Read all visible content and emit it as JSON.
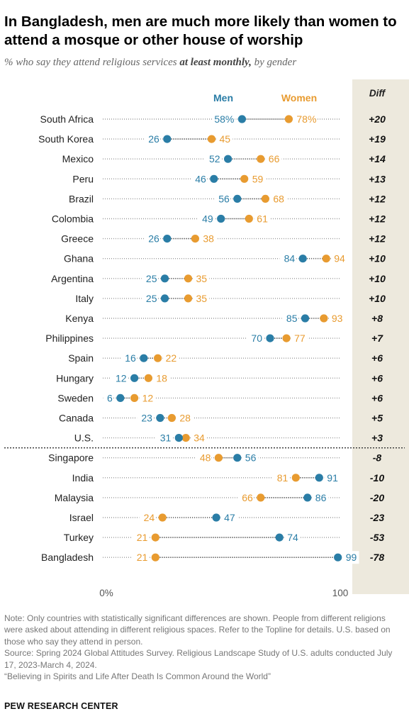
{
  "header": {
    "title": "In Bangladesh, men are much more likely than women to attend a mosque or other house of worship",
    "subtitle_pre": "% who say they attend religious services ",
    "subtitle_bold": "at least monthly,",
    "subtitle_post": " by gender"
  },
  "colors": {
    "men": "#2a7da6",
    "women": "#e89b30",
    "diff_bg": "#ede9dd",
    "dots": "#9a9a9a"
  },
  "chart_data": {
    "type": "scatter",
    "subtype": "dot-plot",
    "xlim": [
      0,
      100
    ],
    "x_tick_labels": [
      "0%",
      "100"
    ],
    "legend": [
      "Men",
      "Women"
    ],
    "diff_header": "Diff",
    "categories": [
      "South Africa",
      "South Korea",
      "Mexico",
      "Peru",
      "Brazil",
      "Colombia",
      "Greece",
      "Ghana",
      "Argentina",
      "Italy",
      "Kenya",
      "Philippines",
      "Spain",
      "Hungary",
      "Sweden",
      "Canada",
      "U.S.",
      "Singapore",
      "India",
      "Malaysia",
      "Israel",
      "Turkey",
      "Bangladesh"
    ],
    "series": [
      {
        "name": "Men",
        "values": [
          58,
          26,
          52,
          46,
          56,
          49,
          26,
          84,
          25,
          25,
          85,
          70,
          16,
          12,
          6,
          23,
          31,
          56,
          91,
          86,
          47,
          74,
          99
        ]
      },
      {
        "name": "Women",
        "values": [
          78,
          45,
          66,
          59,
          68,
          61,
          38,
          94,
          35,
          35,
          93,
          77,
          22,
          18,
          12,
          28,
          34,
          48,
          81,
          66,
          24,
          21,
          21
        ]
      }
    ],
    "men_labels": [
      "58%",
      "26",
      "52",
      "46",
      "56",
      "49",
      "26",
      "84",
      "25",
      "25",
      "85",
      "70",
      "16",
      "12",
      "6",
      "23",
      "31",
      "56",
      "91",
      "86",
      "47",
      "74",
      "99"
    ],
    "women_labels": [
      "78%",
      "45",
      "66",
      "59",
      "68",
      "61",
      "38",
      "94",
      "35",
      "35",
      "93",
      "77",
      "22",
      "18",
      "12",
      "28",
      "34",
      "48",
      "81",
      "66",
      "24",
      "21",
      "21"
    ],
    "diff": [
      "+20",
      "+19",
      "+14",
      "+13",
      "+12",
      "+12",
      "+12",
      "+10",
      "+10",
      "+10",
      "+8",
      "+7",
      "+6",
      "+6",
      "+6",
      "+5",
      "+3",
      "-8",
      "-10",
      "-20",
      "-23",
      "-53",
      "-78"
    ],
    "group_break_after": 16
  },
  "footer": {
    "note": "Note: Only countries with statistically significant differences are shown. People from different religions were asked about attending in different religious spaces. Refer to the Topline for details. U.S. based on those who say they attend in person.",
    "source": "Source: Spring 2024 Global Attitudes Survey. Religious Landscape Study of U.S. adults conducted July 17, 2023-March 4, 2024.",
    "report": "“Believing in Spirits and Life After Death Is Common Around the World”",
    "brand": "PEW RESEARCH CENTER"
  }
}
